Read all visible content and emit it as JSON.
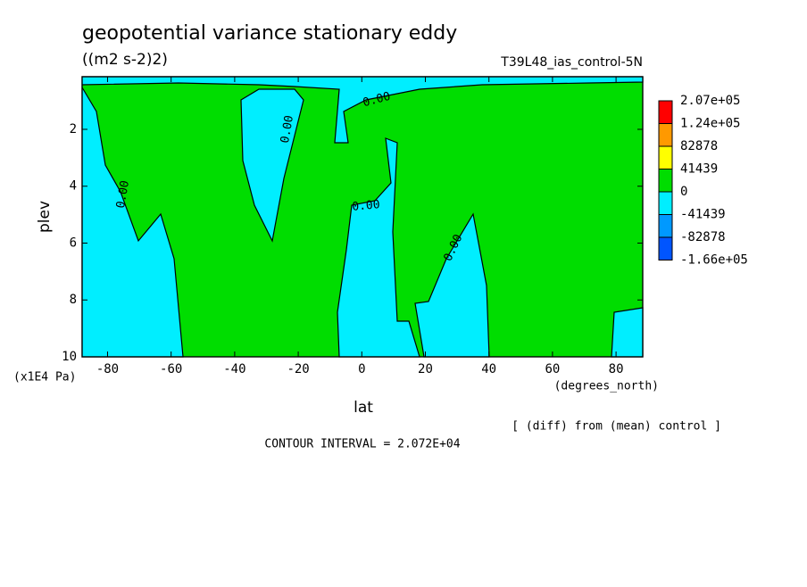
{
  "chart_data": {
    "type": "contour",
    "title": "geopotential variance stationary eddy",
    "units": "((m2 s-2)2)",
    "run_label": "T39L48_ias_control-5N",
    "x_label": "lat",
    "x_unit": "(degrees_north)",
    "y_label": "plev",
    "y_unit": "(x1E4 Pa)",
    "note": "[ (diff) from (mean) control ]",
    "footer": "CONTOUR INTERVAL = 2.072E+04",
    "xlim": [
      -88,
      88.4
    ],
    "xticks": [
      -80,
      -60,
      -40,
      -20,
      0,
      20,
      40,
      60,
      80
    ],
    "ylim": [
      0.15,
      10
    ],
    "yticks": [
      2,
      4,
      6,
      8,
      10
    ],
    "y_inverted": true,
    "colorbar": {
      "levels": [
        {
          "value": 207000,
          "label": "2.07e+05"
        },
        {
          "value": 124000,
          "label": "1.24e+05"
        },
        {
          "value": 82878,
          "label": "82878"
        },
        {
          "value": 41439,
          "label": "41439"
        },
        {
          "value": 0,
          "label": "0"
        },
        {
          "value": -41439,
          "label": "-41439"
        },
        {
          "value": -82878,
          "label": "-82878"
        },
        {
          "value": -166000,
          "label": "-1.66e+05"
        }
      ],
      "colors": [
        "#ff0000",
        "#ff9900",
        "#ffff00",
        "#00dd00",
        "#00eeff",
        "#0099ff",
        "#0055ff"
      ]
    },
    "contour_labels": [
      {
        "value": 0,
        "label": "0.00"
      },
      {
        "value": 0,
        "label": "0.00"
      },
      {
        "value": 0,
        "label": "0.00"
      },
      {
        "value": 0,
        "label": "0.00"
      },
      {
        "value": 0,
        "label": "0.00"
      }
    ]
  }
}
